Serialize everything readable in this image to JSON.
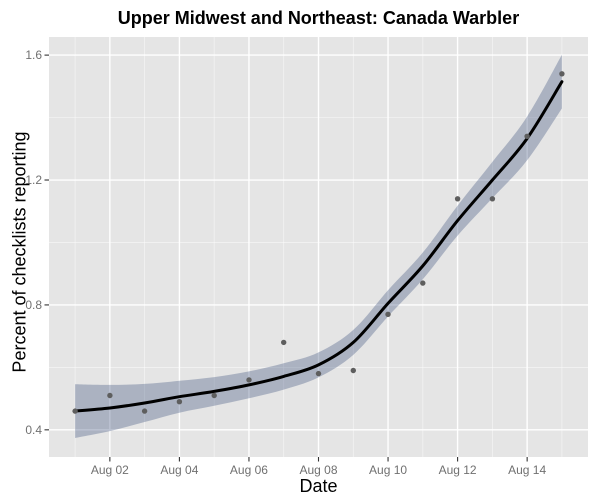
{
  "figure": {
    "title": "Upper Midwest and Northeast: Canada Warbler",
    "xlabel": "Date",
    "ylabel": "Percent of checklists reporting"
  },
  "chart_data": {
    "type": "scatter",
    "subtype": "scatter-with-loess-smooth-and-confidence-band",
    "title": "Upper Midwest and Northeast: Canada Warbler",
    "xlabel": "Date",
    "ylabel": "Percent of checklists reporting",
    "x_unit": "day of August",
    "grid": true,
    "legend": false,
    "x_domain": [
      0.25,
      15.75
    ],
    "y_domain": [
      0.313,
      1.658
    ],
    "x_major_ticks": [
      2,
      4,
      6,
      8,
      10,
      12,
      14
    ],
    "x_major_tick_labels": [
      "Aug 02",
      "Aug 04",
      "Aug 06",
      "Aug 08",
      "Aug 10",
      "Aug 12",
      "Aug 14"
    ],
    "x_minor_ticks": [
      1,
      3,
      5,
      7,
      9,
      11,
      13,
      15
    ],
    "y_major_ticks": [
      0.4,
      0.8,
      1.2,
      1.6
    ],
    "y_major_tick_labels": [
      "0.4",
      "0.8",
      "1.2",
      "1.6"
    ],
    "y_minor_ticks": [
      0.6,
      1.0,
      1.4
    ],
    "points": {
      "dates": [
        "Aug 01",
        "Aug 02",
        "Aug 03",
        "Aug 04",
        "Aug 05",
        "Aug 06",
        "Aug 07",
        "Aug 08",
        "Aug 09",
        "Aug 10",
        "Aug 11",
        "Aug 12",
        "Aug 13",
        "Aug 14",
        "Aug 15"
      ],
      "x_days": [
        1,
        2,
        3,
        4,
        5,
        6,
        7,
        8,
        9,
        10,
        11,
        12,
        13,
        14,
        15
      ],
      "y_percent": [
        0.46,
        0.51,
        0.46,
        0.49,
        0.51,
        0.56,
        0.68,
        0.58,
        0.59,
        0.77,
        0.87,
        1.14,
        1.14,
        1.34,
        1.54
      ]
    },
    "smooth_line": {
      "x_days": [
        1,
        2,
        3,
        4,
        5,
        6,
        7,
        8,
        9,
        10,
        11,
        12,
        13,
        14,
        15
      ],
      "y_percent": [
        0.46,
        0.47,
        0.486,
        0.506,
        0.523,
        0.544,
        0.571,
        0.608,
        0.68,
        0.805,
        0.925,
        1.07,
        1.2,
        1.333,
        1.515
      ]
    },
    "confidence_band": {
      "x_days": [
        1,
        2,
        3,
        4,
        5,
        6,
        7,
        8,
        9,
        10,
        11,
        12,
        13,
        14,
        15
      ],
      "upper": [
        0.546,
        0.544,
        0.547,
        0.557,
        0.569,
        0.587,
        0.613,
        0.648,
        0.72,
        0.847,
        0.968,
        1.118,
        1.258,
        1.403,
        1.601
      ],
      "lower": [
        0.374,
        0.396,
        0.425,
        0.455,
        0.477,
        0.501,
        0.529,
        0.568,
        0.64,
        0.763,
        0.882,
        1.022,
        1.142,
        1.263,
        1.429
      ]
    },
    "colors": {
      "panel_background": "#e5e5e5",
      "major_gridline": "#ffffff",
      "minor_gridline": "rgba(255,255,255,0.6)",
      "confidence_band": "rgba(70,90,130,0.36)",
      "smooth_line": "#000000",
      "point": "#5e5e5e",
      "tick_label": "#707070",
      "tick_mark": "#333333",
      "axis_title": "#000000"
    }
  }
}
